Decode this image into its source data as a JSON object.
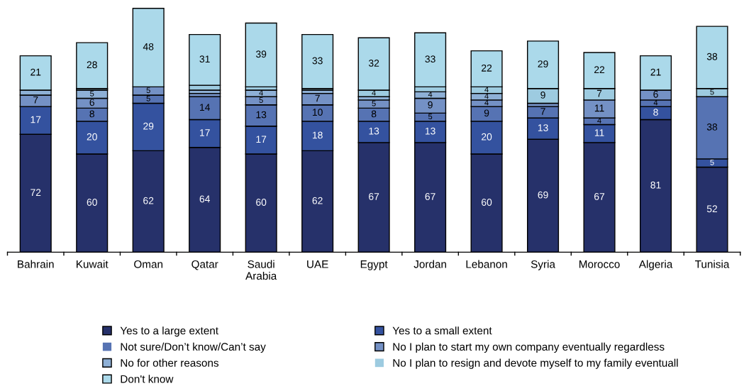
{
  "chart_data": {
    "type": "bar",
    "stacked": true,
    "tick_labels": "x",
    "legend": "bottom",
    "grid": false,
    "categories": [
      "Bahrain",
      "Kuwait",
      "Oman",
      "Qatar",
      "Saudi\nArabia",
      "UAE",
      "Egypt",
      "Jordan",
      "Lebanon",
      "Syria",
      "Morocco",
      "Algeria",
      "Tunisia"
    ],
    "series": [
      {
        "name": "Yes to a large extent",
        "color": "#26316a",
        "values": [
          72,
          60,
          62,
          64,
          60,
          62,
          67,
          67,
          60,
          69,
          67,
          81,
          52
        ],
        "value_labels": [
          "72",
          "60",
          "62",
          "64",
          "60",
          "62",
          "67",
          "67",
          "60",
          "69",
          "67",
          "81",
          "52"
        ]
      },
      {
        "name": "Yes to a small extent",
        "color": "#34529f",
        "values": [
          17,
          20,
          29,
          17,
          17,
          18,
          13,
          13,
          20,
          13,
          11,
          8,
          5
        ],
        "value_labels": [
          "17",
          "20",
          "29",
          "17",
          "17",
          "18",
          "13",
          "13",
          "20",
          "13",
          "11",
          "8",
          "5"
        ]
      },
      {
        "name": "Not sure/Don’t know/Can’t say",
        "color": "#5673b3",
        "values": [
          0,
          8,
          5,
          14,
          13,
          10,
          8,
          5,
          9,
          7,
          4,
          4,
          38
        ],
        "value_labels": [
          null,
          "8",
          "5",
          "14",
          "13",
          "10",
          "8",
          "5",
          "9",
          "7",
          "4",
          "4",
          "38"
        ]
      },
      {
        "name": "No I plan to start my own company eventually regardless",
        "color": "#7491c5",
        "values": [
          7,
          6,
          5,
          2,
          5,
          7,
          5,
          9,
          4,
          2,
          11,
          6,
          0
        ],
        "value_labels": [
          "7",
          "6",
          "5",
          null,
          "5",
          "7",
          "5",
          "9",
          "4",
          null,
          "11",
          "6",
          null
        ]
      },
      {
        "name": "No for other reasons",
        "color": "#8eb0d6",
        "values": [
          3,
          5,
          0,
          2,
          4,
          2,
          2,
          4,
          4,
          0,
          0,
          0,
          0
        ],
        "value_labels": [
          null,
          "5",
          null,
          null,
          "4",
          null,
          null,
          "4",
          "4",
          null,
          null,
          null,
          null
        ]
      },
      {
        "name": "No I plan to resign and devote myself to my family eventuall",
        "color": "#9dcbe0",
        "values": [
          0,
          1,
          0,
          3,
          2,
          1,
          4,
          3,
          4,
          9,
          7,
          0,
          5
        ],
        "value_labels": [
          null,
          null,
          null,
          null,
          null,
          null,
          "4",
          null,
          "4",
          "9",
          "7",
          null,
          "5"
        ]
      },
      {
        "name": "Don't know",
        "color": "#abd9ea",
        "values": [
          21,
          28,
          48,
          31,
          39,
          33,
          32,
          33,
          22,
          29,
          22,
          21,
          38
        ],
        "value_labels": [
          "21",
          "28",
          "48",
          "31",
          "39",
          "33",
          "32",
          "33",
          "22",
          "29",
          "22",
          "21",
          "38"
        ]
      }
    ]
  }
}
